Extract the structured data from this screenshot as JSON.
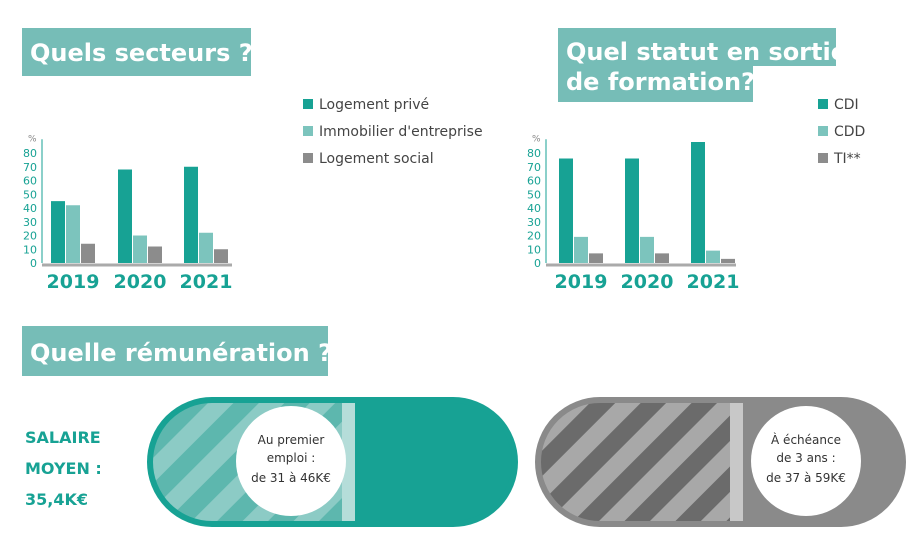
{
  "chart_data": [
    {
      "type": "bar",
      "title": "Quels secteurs ?",
      "unit": "%",
      "categories": [
        "2019",
        "2020",
        "2021"
      ],
      "series": [
        {
          "name": "Logement privé",
          "color": "#17a294",
          "values": [
            45,
            68,
            70
          ]
        },
        {
          "name": "Immobilier d'entreprise",
          "color": "#7cc4bd",
          "values": [
            42,
            20,
            22
          ]
        },
        {
          "name": "Logement social",
          "color": "#8c8c8c",
          "values": [
            14,
            12,
            10
          ]
        }
      ],
      "ylim": [
        0,
        90
      ],
      "yticks": [
        0,
        10,
        20,
        30,
        40,
        50,
        60,
        70,
        80
      ]
    },
    {
      "type": "bar",
      "title": [
        "Quel statut en sortie",
        "de formation?"
      ],
      "unit": "%",
      "categories": [
        "2019",
        "2020",
        "2021"
      ],
      "series": [
        {
          "name": "CDI",
          "color": "#17a294",
          "values": [
            76,
            76,
            88
          ]
        },
        {
          "name": "CDD",
          "color": "#7cc4bd",
          "values": [
            19,
            19,
            9
          ]
        },
        {
          "name": "TI**",
          "color": "#8c8c8c",
          "values": [
            7,
            7,
            3
          ]
        }
      ],
      "ylim": [
        0,
        90
      ],
      "yticks": [
        0,
        10,
        20,
        30,
        40,
        50,
        60,
        70,
        80
      ]
    }
  ],
  "salary": {
    "title": "Quelle rémunération ?",
    "label": [
      "SALAIRE",
      "MOYEN :",
      "35,4K€"
    ],
    "first_job": [
      "Au premier",
      "emploi :",
      "de 31 à 46K€"
    ],
    "after_3_years": [
      "À échéance",
      "de 3 ans :",
      "de 37 à 59K€"
    ]
  }
}
